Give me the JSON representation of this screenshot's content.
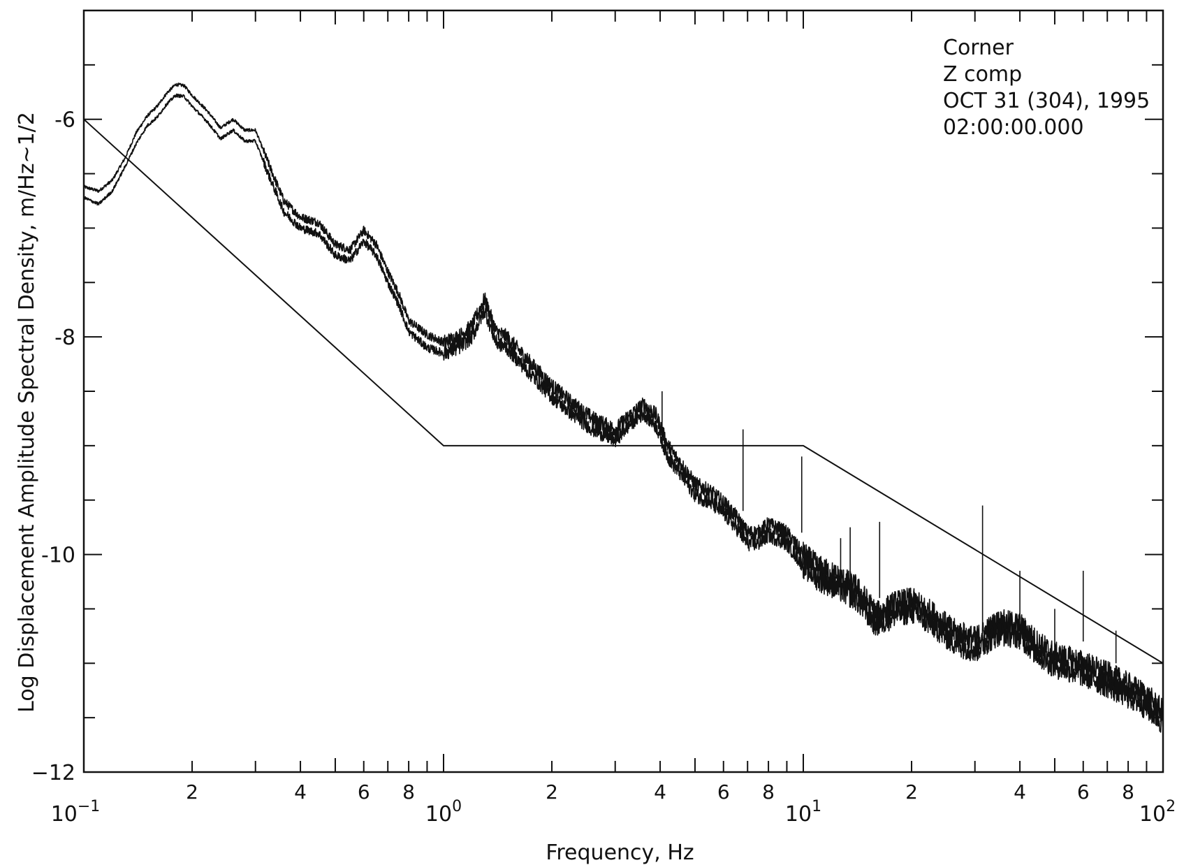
{
  "chart_data": {
    "type": "line",
    "title": "",
    "xlabel": "Frequency, Hz",
    "ylabel": "Log Displacement Amplitude Spectral Density, m/Hz~1/2",
    "x_scale": "log",
    "xlim": [
      0.1,
      100
    ],
    "ylim": [
      -12,
      -5
    ],
    "x_major_ticks": [
      {
        "value": 0.1,
        "base": "10",
        "exp": "−1"
      },
      {
        "value": 1,
        "base": "10",
        "exp": "0"
      },
      {
        "value": 10,
        "base": "10",
        "exp": "1"
      },
      {
        "value": 100,
        "base": "10",
        "exp": "2"
      }
    ],
    "x_minor_ticks": [
      {
        "value": 0.2,
        "label": "2"
      },
      {
        "value": 0.4,
        "label": "4"
      },
      {
        "value": 0.6,
        "label": "6"
      },
      {
        "value": 0.8,
        "label": "8"
      },
      {
        "value": 2,
        "label": "2"
      },
      {
        "value": 4,
        "label": "4"
      },
      {
        "value": 6,
        "label": "6"
      },
      {
        "value": 8,
        "label": "8"
      },
      {
        "value": 20,
        "label": "2"
      },
      {
        "value": 40,
        "label": "4"
      },
      {
        "value": 60,
        "label": "6"
      },
      {
        "value": 80,
        "label": "8"
      }
    ],
    "y_ticks": [
      {
        "value": -6,
        "label": "-6"
      },
      {
        "value": -8,
        "label": "-8"
      },
      {
        "value": -10,
        "label": "-10"
      },
      {
        "value": -12,
        "label": "−12"
      }
    ],
    "annotation": [
      "Corner",
      "Z comp",
      "OCT 31 (304), 1995",
      "02:00:00.000"
    ],
    "grid": false,
    "series": [
      {
        "x": [
          0.1,
          0.11,
          0.12,
          0.13,
          0.14,
          0.15,
          0.16,
          0.17,
          0.18,
          0.19,
          0.2,
          0.22,
          0.24,
          0.26,
          0.28,
          0.3,
          0.33,
          0.36,
          0.4,
          0.45,
          0.5,
          0.55,
          0.6,
          0.65,
          0.7,
          0.75,
          0.8,
          0.9,
          1.0,
          1.1,
          1.2,
          1.3,
          1.4,
          1.5,
          1.7,
          2.0,
          2.3,
          2.6,
          3.0,
          3.3,
          3.6,
          3.9,
          4.2,
          4.6,
          5.0,
          5.5,
          6.0,
          6.5,
          7.0,
          7.5,
          8.0,
          9.0,
          10.0,
          11.0,
          12.0,
          14.0,
          16.0,
          18.0,
          20.0,
          23.0,
          26.0,
          30.0,
          35.0,
          40.0,
          45.0,
          50.0,
          60.0,
          70.0,
          80.0,
          90.0,
          100.0
        ],
        "y": [
          -6.62,
          -6.66,
          -6.56,
          -6.36,
          -6.12,
          -5.97,
          -5.88,
          -5.76,
          -5.68,
          -5.69,
          -5.78,
          -5.92,
          -6.08,
          -6.0,
          -6.1,
          -6.1,
          -6.45,
          -6.75,
          -6.9,
          -6.95,
          -7.15,
          -7.2,
          -7.02,
          -7.15,
          -7.4,
          -7.6,
          -7.85,
          -7.98,
          -8.05,
          -8.0,
          -7.9,
          -7.65,
          -7.95,
          -8.0,
          -8.2,
          -8.45,
          -8.62,
          -8.75,
          -8.85,
          -8.72,
          -8.62,
          -8.72,
          -9.0,
          -9.18,
          -9.35,
          -9.42,
          -9.52,
          -9.65,
          -9.8,
          -9.8,
          -9.72,
          -9.8,
          -10.0,
          -10.12,
          -10.18,
          -10.3,
          -10.55,
          -10.45,
          -10.42,
          -10.55,
          -10.7,
          -10.78,
          -10.62,
          -10.65,
          -10.82,
          -10.92,
          -11.0,
          -11.1,
          -11.2,
          -11.3,
          -11.45
        ]
      },
      {
        "x": [
          0.1,
          0.11,
          0.12,
          0.13,
          0.14,
          0.15,
          0.16,
          0.17,
          0.18,
          0.19,
          0.2,
          0.22,
          0.24,
          0.26,
          0.28,
          0.3,
          0.33,
          0.36,
          0.4,
          0.45,
          0.5,
          0.55,
          0.6,
          0.65,
          0.7,
          0.75,
          0.8,
          0.9,
          1.0,
          1.1,
          1.2,
          1.3,
          1.4,
          1.5,
          1.7,
          2.0,
          2.3,
          2.6,
          3.0,
          3.3,
          3.6,
          3.9,
          4.2,
          4.6,
          5.0,
          5.5,
          6.0,
          6.5,
          7.0,
          7.5,
          8.0,
          9.0,
          10.0,
          11.0,
          12.0,
          14.0,
          16.0,
          18.0,
          20.0,
          23.0,
          26.0,
          30.0,
          35.0,
          40.0,
          45.0,
          50.0,
          60.0,
          70.0,
          80.0,
          90.0,
          100.0
        ],
        "y": [
          -6.72,
          -6.78,
          -6.66,
          -6.44,
          -6.22,
          -6.06,
          -5.98,
          -5.86,
          -5.78,
          -5.79,
          -5.88,
          -6.02,
          -6.18,
          -6.1,
          -6.2,
          -6.2,
          -6.55,
          -6.85,
          -7.0,
          -7.05,
          -7.25,
          -7.3,
          -7.12,
          -7.25,
          -7.5,
          -7.7,
          -7.95,
          -8.1,
          -8.15,
          -8.1,
          -8.0,
          -7.75,
          -8.05,
          -8.1,
          -8.3,
          -8.55,
          -8.72,
          -8.85,
          -8.95,
          -8.8,
          -8.7,
          -8.82,
          -9.1,
          -9.28,
          -9.45,
          -9.52,
          -9.62,
          -9.75,
          -9.9,
          -9.9,
          -9.82,
          -9.9,
          -10.1,
          -10.22,
          -10.28,
          -10.4,
          -10.65,
          -10.55,
          -10.52,
          -10.65,
          -10.8,
          -10.88,
          -10.72,
          -10.75,
          -10.92,
          -11.02,
          -11.1,
          -11.2,
          -11.3,
          -11.4,
          -11.55
        ]
      },
      {
        "x": [
          0.1,
          1.0,
          10.0,
          100.0
        ],
        "y": [
          -6.0,
          -9.0,
          -9.0,
          -11.0
        ]
      }
    ]
  }
}
